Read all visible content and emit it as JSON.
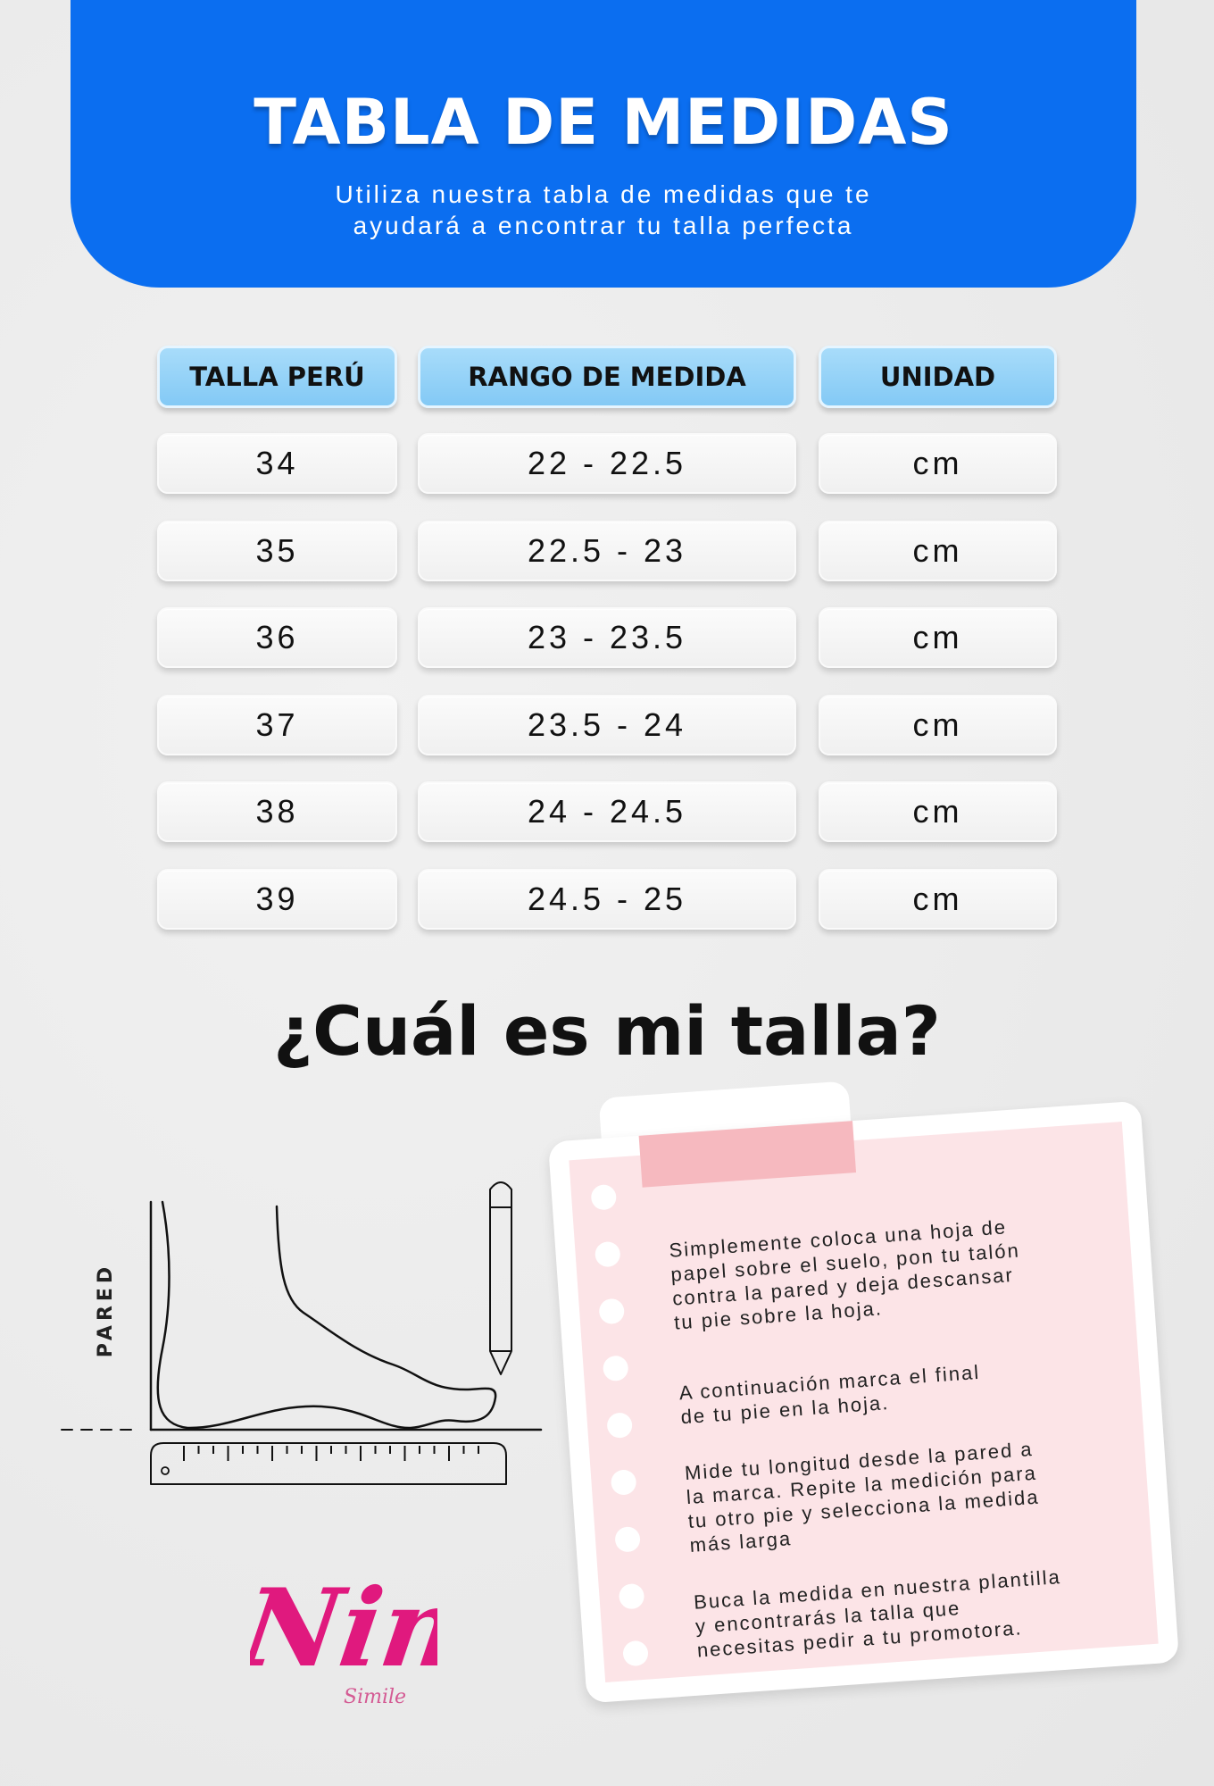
{
  "header": {
    "title": "TABLA DE MEDIDAS",
    "subtitle_line1": "Utiliza nuestra tabla de medidas que te",
    "subtitle_line2": "ayudará a encontrar tu talla perfecta"
  },
  "table": {
    "columns": [
      "TALLA PERÚ",
      "RANGO DE MEDIDA",
      "UNIDAD"
    ],
    "rows": [
      [
        "34",
        "22 - 22.5",
        "cm"
      ],
      [
        "35",
        "22.5 - 23",
        "cm"
      ],
      [
        "36",
        "23 - 23.5",
        "cm"
      ],
      [
        "37",
        "23.5 - 24",
        "cm"
      ],
      [
        "38",
        "24 - 24.5",
        "cm"
      ],
      [
        "39",
        "24.5 - 25",
        "cm"
      ]
    ]
  },
  "question": "¿Cuál es mi talla?",
  "diagram": {
    "wall_label": "PARED"
  },
  "steps": [
    "Simplemente coloca una hoja de\npapel sobre el suelo, pon tu talón\ncontra la pared y deja descansar\ntu pie sobre la hoja.",
    "A continuación marca el final\nde tu pie en la hoja.",
    "Mide tu longitud desde la pared a\nla marca. Repite la medición para\ntu otro pie y selecciona la medida\nmás larga",
    "Buca la medida en nuestra plantilla\ny encontrarás la talla que\nnecesitas pedir a tu promotora."
  ],
  "logo": {
    "name": "Nina",
    "sub": "Simile"
  },
  "colors": {
    "brand_blue": "#0b6ef0",
    "header_cell": "#8fd0f8",
    "note_pink": "#fce4e7",
    "logo_pink": "#e0197e"
  }
}
